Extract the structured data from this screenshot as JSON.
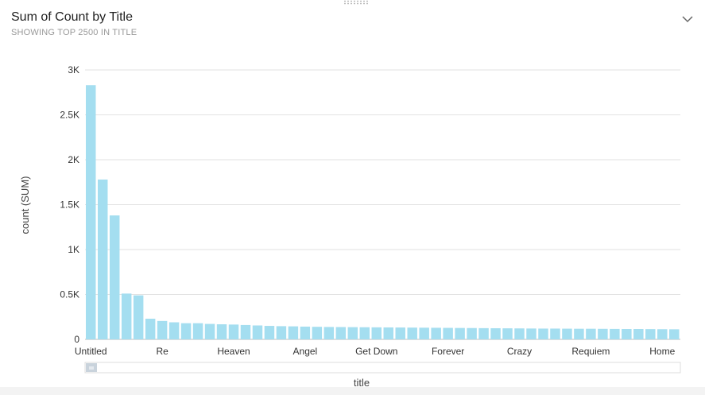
{
  "header": {
    "title": "Sum of Count by Title",
    "subtitle": "SHOWING TOP 2500 IN TITLE",
    "menu_icon": "chevron-down-icon"
  },
  "colors": {
    "bar": "#a4def0",
    "grid": "#e2e2e2",
    "scroll_thumb": "#c9d3dc"
  },
  "chart_data": {
    "type": "bar",
    "xlabel": "title",
    "ylabel": "count (SUM)",
    "ylim": [
      0,
      3000
    ],
    "yticks": [
      {
        "value": 0,
        "label": "0"
      },
      {
        "value": 500,
        "label": "0.5K"
      },
      {
        "value": 1000,
        "label": "1K"
      },
      {
        "value": 1500,
        "label": "1.5K"
      },
      {
        "value": 2000,
        "label": "2K"
      },
      {
        "value": 2500,
        "label": "2.5K"
      },
      {
        "value": 3000,
        "label": "3K"
      }
    ],
    "visible_x_labels": [
      {
        "index": 0,
        "label": "Untitled"
      },
      {
        "index": 6,
        "label": "Re"
      },
      {
        "index": 12,
        "label": "Heaven"
      },
      {
        "index": 18,
        "label": "Angel"
      },
      {
        "index": 24,
        "label": "Get Down"
      },
      {
        "index": 30,
        "label": "Forever"
      },
      {
        "index": 36,
        "label": "Crazy"
      },
      {
        "index": 42,
        "label": "Requiem"
      },
      {
        "index": 48,
        "label": "Home"
      }
    ],
    "values": [
      2830,
      1780,
      1380,
      510,
      490,
      230,
      205,
      190,
      180,
      180,
      172,
      168,
      165,
      160,
      155,
      150,
      147,
      145,
      142,
      140,
      138,
      137,
      136,
      135,
      134,
      133,
      132,
      131,
      130,
      129,
      128,
      127,
      126,
      125,
      124,
      123,
      122,
      121,
      120,
      120,
      119,
      118,
      118,
      117,
      116,
      115,
      115,
      114,
      113,
      112
    ]
  }
}
